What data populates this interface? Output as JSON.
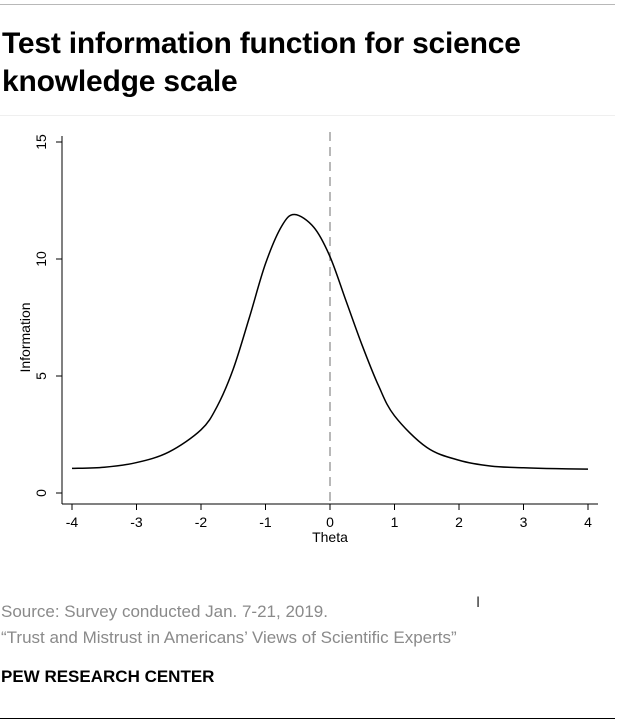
{
  "header": {
    "title": "Test information function for science knowledge scale"
  },
  "footer": {
    "source": "Source: Survey conducted Jan. 7-21, 2019.",
    "report": "“Trust and Mistrust in Americans’ Views of Scientific Experts”",
    "org": "PEW RESEARCH CENTER"
  },
  "chart_data": {
    "type": "line",
    "title": "",
    "xlabel": "Theta",
    "ylabel": "Information",
    "xlim": [
      -4,
      4
    ],
    "ylim": [
      0,
      15
    ],
    "xticks": [
      "-4",
      "-3",
      "-2",
      "-1",
      "0",
      "1",
      "2",
      "3",
      "4"
    ],
    "yticks": [
      "0",
      "5",
      "10",
      "15"
    ],
    "grid": false,
    "reference_line": {
      "x": 0,
      "style": "dashed",
      "color": "#9a9a9a"
    },
    "series": [
      {
        "color": "#000000",
        "x": [
          -4,
          -3.5,
          -3,
          -2.5,
          -2,
          -1.75,
          -1.5,
          -1.25,
          -1,
          -0.75,
          -0.55,
          -0.25,
          0,
          0.25,
          0.5,
          0.75,
          1,
          1.5,
          2,
          2.5,
          3,
          3.5,
          4
        ],
        "y": [
          1.05,
          1.1,
          1.3,
          1.75,
          2.7,
          3.7,
          5.3,
          7.5,
          9.8,
          11.4,
          11.9,
          11.35,
          10.1,
          8.2,
          6.3,
          4.6,
          3.3,
          1.95,
          1.4,
          1.15,
          1.08,
          1.04,
          1.02
        ]
      }
    ]
  }
}
